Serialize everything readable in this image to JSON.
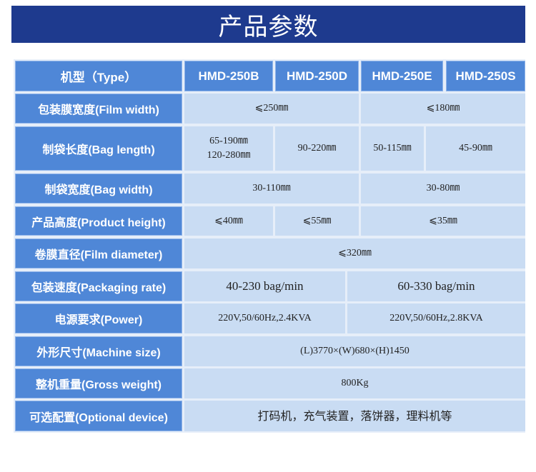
{
  "title": "产品参数",
  "header": {
    "label": "机型（Type）",
    "models": [
      "HMD-250B",
      "HMD-250D",
      "HMD-250E",
      "HMD-250S"
    ]
  },
  "rows": {
    "film_width": {
      "label": "包装膜宽度(Film width)",
      "values": [
        "⩽250㎜",
        "⩽180㎜"
      ]
    },
    "bag_length": {
      "label": "制袋长度(Bag length)",
      "values": [
        "65-190㎜",
        "120-280㎜",
        "90-220㎜",
        "50-115㎜",
        "45-90㎜"
      ]
    },
    "bag_width": {
      "label": "制袋宽度(Bag width)",
      "values": [
        "30-110㎜",
        "30-80㎜"
      ]
    },
    "product_height": {
      "label": "产品高度(Product height)",
      "values": [
        "⩽40㎜",
        "⩽55㎜",
        "⩽35㎜"
      ]
    },
    "film_diameter": {
      "label": "卷膜直径(Film diameter)",
      "values": [
        "⩽320㎜"
      ]
    },
    "packaging_rate": {
      "label": "包装速度(Packaging rate)",
      "values": [
        "40-230 bag/min",
        "60-330 bag/min"
      ]
    },
    "power": {
      "label": "电源要求(Power)",
      "values": [
        "220V,50/60Hz,2.4KVA",
        "220V,50/60Hz,2.8KVA"
      ]
    },
    "machine_size": {
      "label": "外形尺寸(Machine size)",
      "values": [
        "(L)3770×(W)680×(H)1450"
      ]
    },
    "gross_weight": {
      "label": "整机重量(Gross weight)",
      "values": [
        "800Kg"
      ]
    },
    "optional_device": {
      "label": "可选配置(Optional device)",
      "values": [
        "打码机，充气装置，落饼器，理料机等"
      ]
    }
  }
}
